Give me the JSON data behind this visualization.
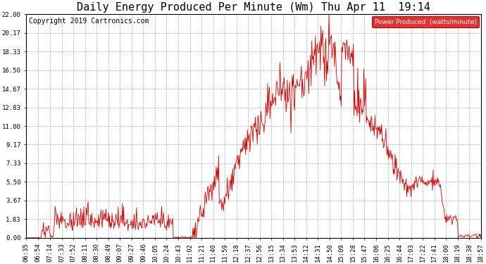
{
  "title": "Daily Energy Produced Per Minute (Wm) Thu Apr 11  19:14",
  "copyright": "Copyright 2019 Cartronics.com",
  "legend_label": "Power Produced  (watts/minute)",
  "legend_bg": "#dd0000",
  "legend_fg": "#ffffff",
  "line_color": "#cc0000",
  "bg_color": "#ffffff",
  "grid_color": "#aaaaaa",
  "ymin": 0.0,
  "ymax": 22.0,
  "yticks": [
    0.0,
    1.83,
    3.67,
    5.5,
    7.33,
    9.17,
    11.0,
    12.83,
    14.67,
    16.5,
    18.33,
    20.17,
    22.0
  ],
  "xtick_labels": [
    "06:35",
    "06:54",
    "07:14",
    "07:33",
    "07:52",
    "08:11",
    "08:30",
    "08:49",
    "09:07",
    "09:27",
    "09:46",
    "10:05",
    "10:24",
    "10:43",
    "11:02",
    "11:21",
    "11:40",
    "11:59",
    "12:18",
    "12:37",
    "12:56",
    "13:15",
    "13:34",
    "13:53",
    "14:12",
    "14:31",
    "14:50",
    "15:09",
    "15:28",
    "15:47",
    "16:06",
    "16:25",
    "16:44",
    "17:03",
    "17:22",
    "17:41",
    "18:00",
    "18:19",
    "18:38",
    "18:57"
  ],
  "start_hhmm": "06:35",
  "end_hhmm": "18:57",
  "title_fontsize": 11,
  "tick_fontsize": 6.5,
  "copyright_fontsize": 7
}
